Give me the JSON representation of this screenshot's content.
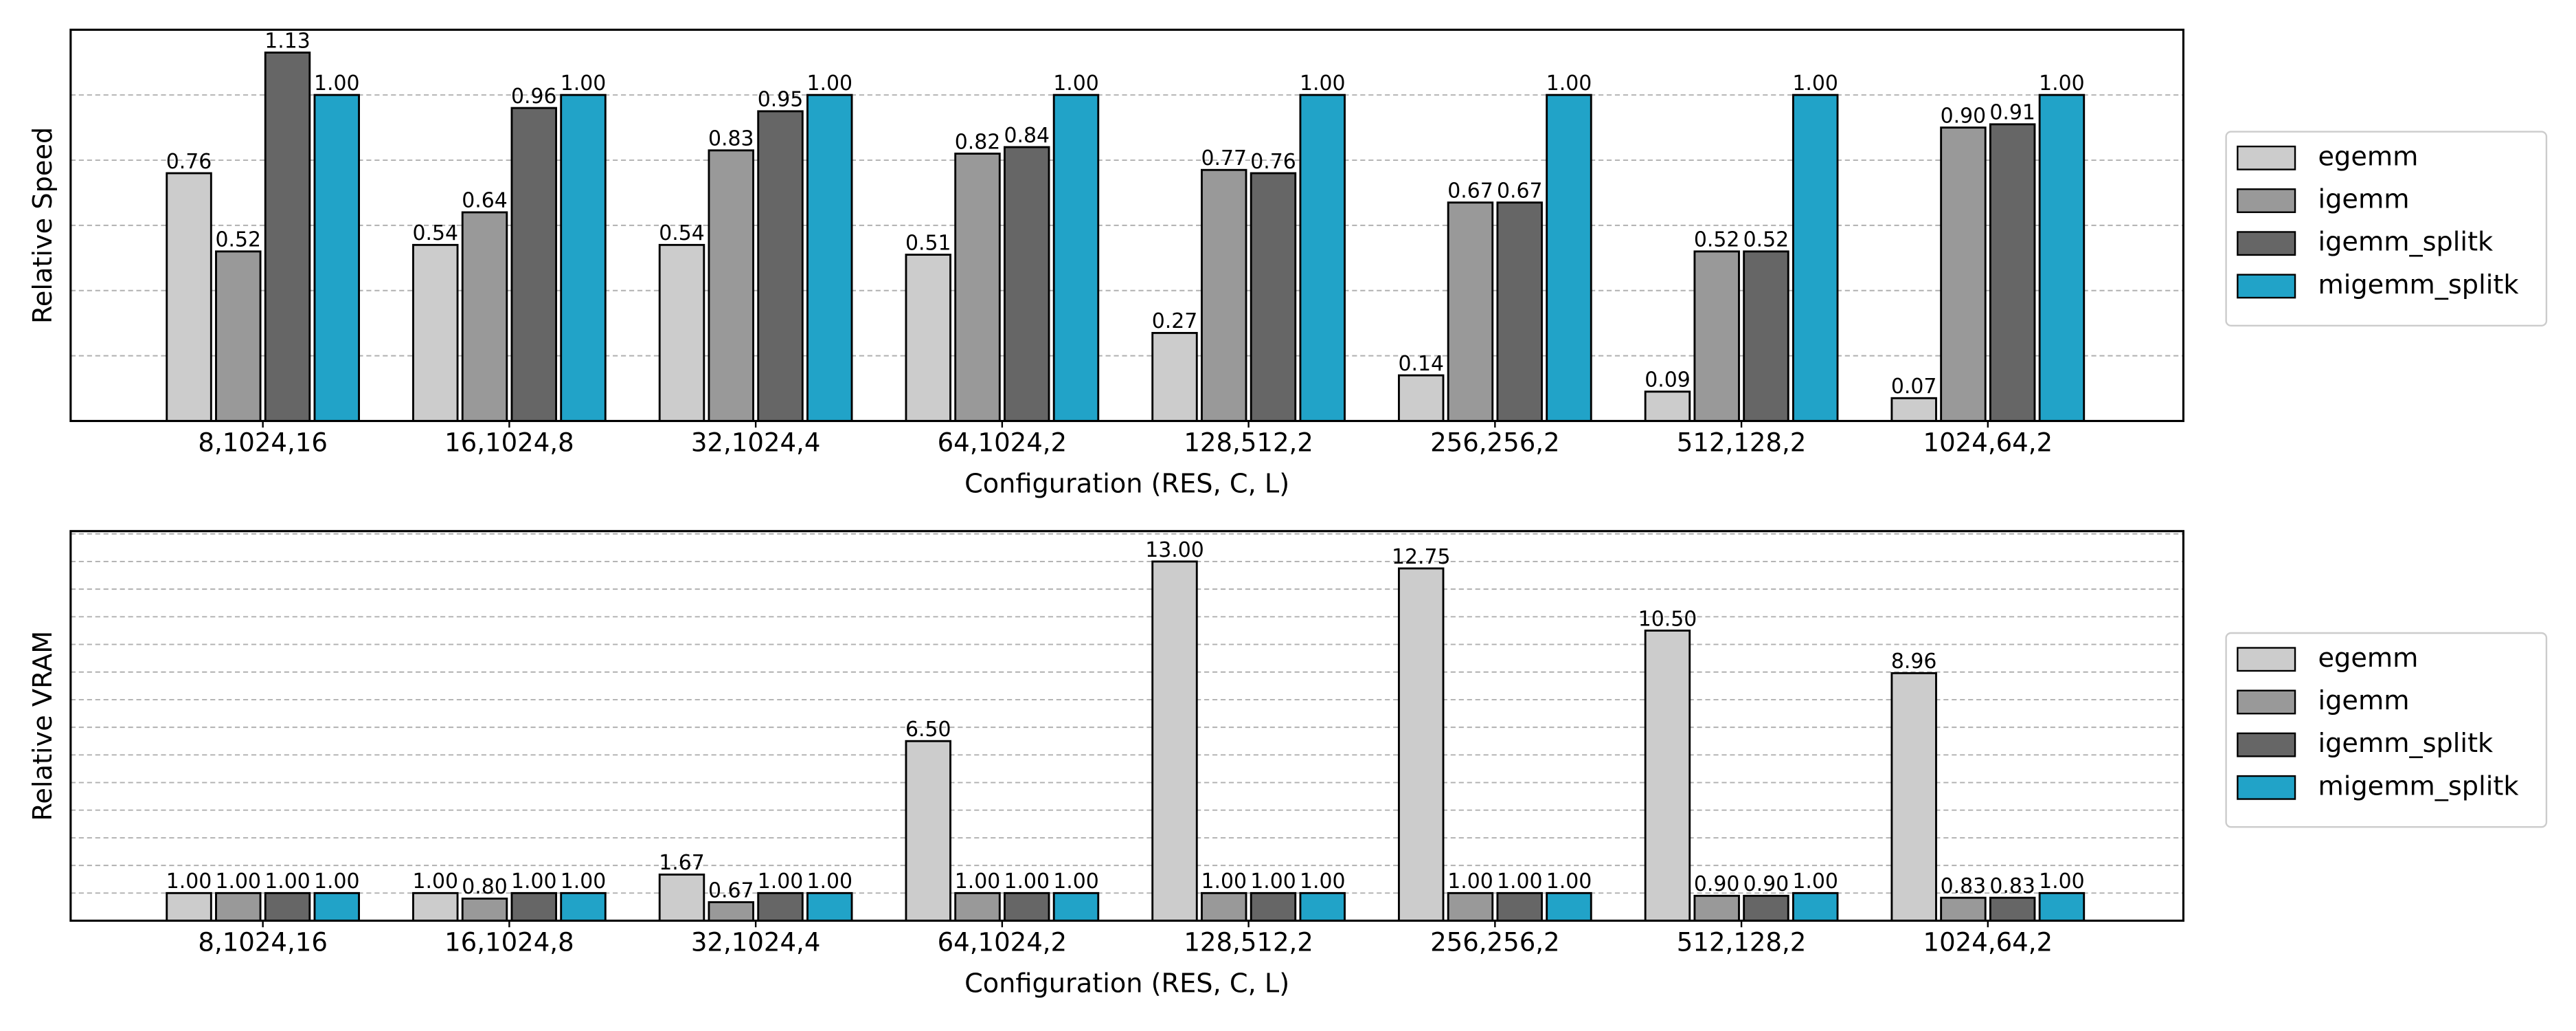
{
  "chart_data": [
    {
      "type": "bar",
      "ylabel": "Relative Speed",
      "xlabel": "Configuration (RES, C, L)",
      "categories": [
        "8,1024,16",
        "16,1024,8",
        "32,1024,4",
        "64,1024,2",
        "128,512,2",
        "256,256,2",
        "512,128,2",
        "1024,64,2"
      ],
      "ylim": [
        0,
        1.2
      ],
      "grid_lines": [
        0.2,
        0.4,
        0.6,
        0.8,
        1.0
      ],
      "legend": "right",
      "series": [
        {
          "name": "egemm",
          "color": "#cccccc",
          "values": [
            0.76,
            0.54,
            0.54,
            0.51,
            0.27,
            0.14,
            0.09,
            0.07
          ],
          "value_labels": [
            "0.76",
            "0.54",
            "0.54",
            "0.51",
            "0.27",
            "0.14",
            "0.09",
            "0.07"
          ]
        },
        {
          "name": "igemm",
          "color": "#999999",
          "values": [
            0.52,
            0.64,
            0.83,
            0.82,
            0.77,
            0.67,
            0.52,
            0.9
          ],
          "value_labels": [
            "0.52",
            "0.64",
            "0.83",
            "0.82",
            "0.77",
            "0.67",
            "0.52",
            "0.90"
          ]
        },
        {
          "name": "igemm_splitk",
          "color": "#666666",
          "values": [
            1.13,
            0.96,
            0.95,
            0.84,
            0.76,
            0.67,
            0.52,
            0.91
          ],
          "value_labels": [
            "1.13",
            "0.96",
            "0.95",
            "0.84",
            "0.76",
            "0.67",
            "0.52",
            "0.91"
          ]
        },
        {
          "name": "migemm_splitk",
          "color": "#21a3c8",
          "values": [
            1,
            1,
            1,
            1,
            1,
            1,
            1,
            1
          ],
          "value_labels": [
            "1.00",
            "1.00",
            "1.00",
            "1.00",
            "1.00",
            "1.00",
            "1.00",
            "1.00"
          ]
        }
      ]
    },
    {
      "type": "bar",
      "ylabel": "Relative VRAM",
      "xlabel": "Configuration (RES, C, L)",
      "categories": [
        "8,1024,16",
        "16,1024,8",
        "32,1024,4",
        "64,1024,2",
        "128,512,2",
        "256,256,2",
        "512,128,2",
        "1024,64,2"
      ],
      "ylim": [
        0,
        14.1
      ],
      "grid_lines": [
        1,
        2,
        3,
        4,
        5,
        6,
        7,
        8,
        9,
        10,
        11,
        12,
        13,
        14
      ],
      "legend": "right",
      "series": [
        {
          "name": "egemm",
          "color": "#cccccc",
          "values": [
            1,
            1,
            1.67,
            6.5,
            13,
            12.75,
            10.5,
            8.96
          ],
          "value_labels": [
            "1.00",
            "1.00",
            "1.67",
            "6.50",
            "13.00",
            "12.75",
            "10.50",
            "8.96"
          ]
        },
        {
          "name": "igemm",
          "color": "#999999",
          "values": [
            1,
            0.8,
            0.67,
            1,
            1,
            1,
            0.9,
            0.83
          ],
          "value_labels": [
            "1.00",
            "0.80",
            "0.67",
            "1.00",
            "1.00",
            "1.00",
            "0.90",
            "0.83"
          ]
        },
        {
          "name": "igemm_splitk",
          "color": "#666666",
          "values": [
            1,
            1,
            1,
            1,
            1,
            1,
            0.9,
            0.83
          ],
          "value_labels": [
            "1.00",
            "1.00",
            "1.00",
            "1.00",
            "1.00",
            "1.00",
            "0.90",
            "0.83"
          ]
        },
        {
          "name": "migemm_splitk",
          "color": "#21a3c8",
          "values": [
            1,
            1,
            1,
            1,
            1,
            1,
            1,
            1
          ],
          "value_labels": [
            "1.00",
            "1.00",
            "1.00",
            "1.00",
            "1.00",
            "1.00",
            "1.00",
            "1.00"
          ]
        }
      ]
    }
  ]
}
